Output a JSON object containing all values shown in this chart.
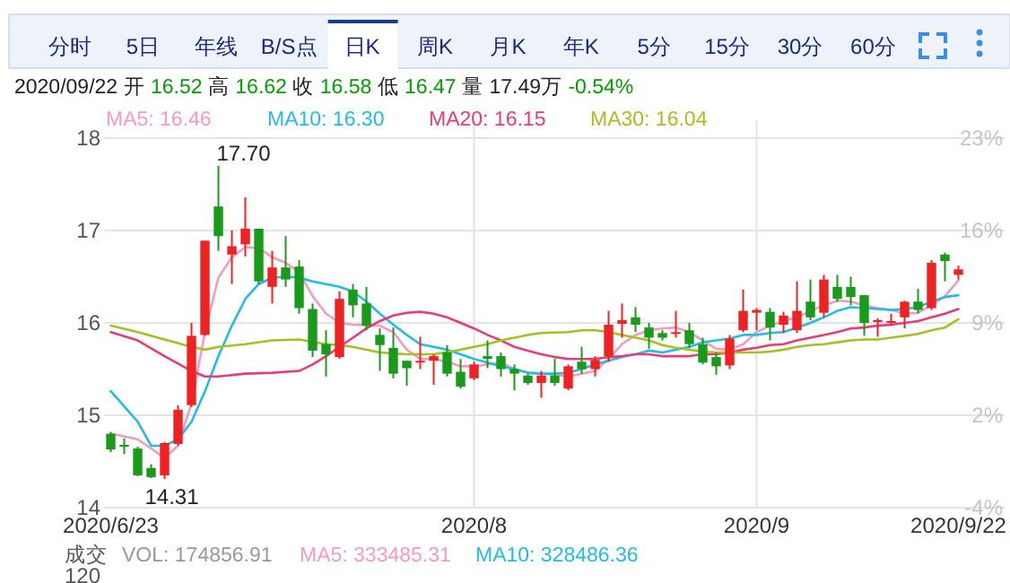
{
  "chart_data": {
    "type": "candlestick",
    "categories": [
      "2020/6/23",
      null,
      null,
      null,
      null,
      null,
      null,
      null,
      null,
      null,
      null,
      null,
      null,
      null,
      null,
      null,
      null,
      null,
      null,
      null,
      null,
      null,
      null,
      null,
      null,
      null,
      null,
      "2020/8",
      null,
      null,
      null,
      null,
      null,
      null,
      null,
      null,
      null,
      null,
      null,
      null,
      null,
      null,
      null,
      null,
      null,
      null,
      null,
      null,
      "2020/9",
      null,
      null,
      null,
      null,
      null,
      null,
      null,
      null,
      null,
      null,
      null,
      null,
      null,
      null,
      "2020/9/22"
    ],
    "ohlc": [
      [
        14.8,
        14.82,
        14.6,
        14.63
      ],
      [
        14.68,
        14.75,
        14.58,
        14.66
      ],
      [
        14.64,
        14.66,
        14.34,
        14.35
      ],
      [
        14.43,
        14.47,
        14.32,
        14.33
      ],
      [
        14.35,
        14.71,
        14.31,
        14.7
      ],
      [
        14.69,
        15.11,
        14.67,
        15.06
      ],
      [
        15.11,
        16.0,
        15.09,
        15.86
      ],
      [
        15.87,
        16.89,
        15.86,
        16.89
      ],
      [
        17.26,
        17.7,
        16.78,
        16.94
      ],
      [
        16.74,
        17.0,
        16.42,
        16.83
      ],
      [
        16.85,
        17.36,
        16.72,
        17.02
      ],
      [
        17.02,
        17.02,
        16.42,
        16.45
      ],
      [
        16.39,
        16.78,
        16.21,
        16.6
      ],
      [
        16.6,
        16.94,
        16.39,
        16.47
      ],
      [
        16.61,
        16.68,
        16.1,
        16.16
      ],
      [
        16.15,
        16.21,
        15.63,
        15.7
      ],
      [
        15.77,
        15.92,
        15.42,
        15.66
      ],
      [
        15.63,
        16.34,
        15.61,
        16.26
      ],
      [
        16.36,
        16.42,
        16.06,
        16.19
      ],
      [
        16.21,
        16.39,
        15.92,
        15.97
      ],
      [
        15.87,
        15.94,
        15.48,
        15.76
      ],
      [
        15.73,
        15.95,
        15.4,
        15.45
      ],
      [
        15.59,
        15.59,
        15.32,
        15.51
      ],
      [
        15.57,
        15.85,
        15.5,
        15.59
      ],
      [
        15.59,
        15.66,
        15.33,
        15.64
      ],
      [
        15.68,
        15.76,
        15.42,
        15.45
      ],
      [
        15.47,
        15.61,
        15.29,
        15.31
      ],
      [
        15.4,
        15.58,
        15.38,
        15.55
      ],
      [
        15.64,
        15.81,
        15.51,
        15.61
      ],
      [
        15.64,
        15.68,
        15.42,
        15.5
      ],
      [
        15.5,
        15.55,
        15.27,
        15.45
      ],
      [
        15.43,
        15.45,
        15.33,
        15.35
      ],
      [
        15.35,
        15.48,
        15.19,
        15.43
      ],
      [
        15.43,
        15.61,
        15.32,
        15.35
      ],
      [
        15.29,
        15.55,
        15.27,
        15.53
      ],
      [
        15.58,
        15.74,
        15.45,
        15.5
      ],
      [
        15.5,
        15.64,
        15.42,
        15.6
      ],
      [
        15.64,
        16.13,
        15.58,
        15.98
      ],
      [
        15.99,
        16.21,
        15.84,
        16.03
      ],
      [
        16.06,
        16.17,
        15.9,
        15.98
      ],
      [
        15.95,
        16.0,
        15.72,
        15.84
      ],
      [
        15.89,
        15.92,
        15.81,
        15.84
      ],
      [
        15.88,
        16.13,
        15.84,
        15.9
      ],
      [
        15.92,
        16.0,
        15.73,
        15.77
      ],
      [
        15.77,
        15.84,
        15.55,
        15.57
      ],
      [
        15.63,
        15.68,
        15.44,
        15.53
      ],
      [
        15.54,
        15.87,
        15.5,
        15.83
      ],
      [
        15.92,
        16.36,
        15.9,
        16.13
      ],
      [
        16.11,
        16.16,
        15.92,
        16.14
      ],
      [
        16.12,
        16.16,
        15.81,
        15.95
      ],
      [
        15.98,
        16.12,
        15.89,
        16.08
      ],
      [
        15.92,
        16.45,
        15.89,
        16.13
      ],
      [
        16.23,
        16.47,
        16.03,
        16.06
      ],
      [
        16.11,
        16.52,
        16.06,
        16.47
      ],
      [
        16.39,
        16.52,
        16.23,
        16.26
      ],
      [
        16.39,
        16.5,
        16.19,
        16.28
      ],
      [
        16.3,
        16.3,
        15.86,
        16.0
      ],
      [
        16.01,
        16.05,
        15.85,
        16.03
      ],
      [
        16.01,
        16.1,
        15.97,
        16.02
      ],
      [
        16.06,
        16.24,
        15.94,
        16.23
      ],
      [
        16.23,
        16.37,
        16.1,
        16.14
      ],
      [
        16.16,
        16.68,
        16.14,
        16.65
      ],
      [
        16.74,
        16.76,
        16.45,
        16.67
      ],
      [
        16.52,
        16.62,
        16.47,
        16.58
      ]
    ],
    "colors": [
      "#1a9a1a",
      "#1a9a1a",
      "#1a9a1a",
      "#1a9a1a",
      "#ee2222",
      "#ee2222",
      "#ee2222",
      "#ee2222",
      "#1a9a1a",
      "#ee2222",
      "#ee2222",
      "#1a9a1a",
      "#ee2222",
      "#1a9a1a",
      "#1a9a1a",
      "#1a9a1a",
      "#1a9a1a",
      "#ee2222",
      "#1a9a1a",
      "#1a9a1a",
      "#1a9a1a",
      "#1a9a1a",
      "#1a9a1a",
      "#ee2222",
      "#ee2222",
      "#1a9a1a",
      "#1a9a1a",
      "#ee2222",
      "#1a9a1a",
      "#1a9a1a",
      "#1a9a1a",
      "#1a9a1a",
      "#ee2222",
      "#1a9a1a",
      "#ee2222",
      "#1a9a1a",
      "#ee2222",
      "#ee2222",
      "#ee2222",
      "#1a9a1a",
      "#1a9a1a",
      "#1a9a1a",
      "#ee2222",
      "#1a9a1a",
      "#1a9a1a",
      "#1a9a1a",
      "#ee2222",
      "#ee2222",
      "#ee2222",
      "#1a9a1a",
      "#ee2222",
      "#ee2222",
      "#1a9a1a",
      "#ee2222",
      "#1a9a1a",
      "#1a9a1a",
      "#1a9a1a",
      "#ee2222",
      "#ee2222",
      "#ee2222",
      "#1a9a1a",
      "#ee2222",
      "#1a9a1a",
      "#ee2222"
    ],
    "series": [
      {
        "name": "MA5: 16.46",
        "type": "line",
        "color": "#f59ac0",
        "values": [
          14.8,
          null,
          14.74,
          null,
          14.54,
          14.67,
          15.13,
          15.9,
          16.49,
          16.71,
          16.82,
          16.81,
          16.71,
          16.65,
          16.55,
          16.29,
          16.1,
          16.0,
          15.98,
          null,
          15.97,
          15.9,
          15.71,
          15.61,
          15.61,
          15.58,
          15.53,
          15.53,
          15.55,
          15.57,
          15.5,
          15.46,
          15.45,
          15.44,
          15.42,
          15.45,
          15.48,
          15.61,
          15.77,
          15.87,
          15.92,
          15.94,
          15.95,
          15.9,
          15.81,
          15.72,
          15.71,
          15.77,
          15.9,
          15.97,
          16.02,
          16.06,
          16.13,
          16.19,
          16.24,
          16.23,
          16.19,
          16.16,
          16.14,
          16.1,
          16.11,
          16.19,
          16.29,
          16.46
        ]
      },
      {
        "name": "MA10: 16.30",
        "type": "line",
        "color": "#22bde6",
        "values": [
          15.26,
          null,
          14.93,
          14.67,
          14.67,
          14.74,
          14.93,
          15.26,
          15.64,
          15.97,
          16.26,
          16.42,
          16.49,
          16.5,
          16.49,
          16.45,
          16.42,
          16.39,
          16.34,
          16.23,
          16.1,
          15.98,
          15.87,
          15.77,
          15.74,
          15.71,
          15.66,
          15.61,
          15.57,
          15.53,
          15.5,
          15.46,
          15.45,
          15.45,
          15.46,
          15.5,
          15.55,
          15.59,
          15.63,
          15.66,
          15.7,
          15.68,
          15.71,
          15.74,
          15.79,
          15.81,
          15.83,
          15.87,
          15.87,
          15.89,
          15.9,
          15.95,
          16.0,
          16.06,
          16.13,
          16.17,
          16.16,
          16.15,
          16.14,
          16.15,
          16.17,
          16.23,
          16.28,
          16.3
        ]
      },
      {
        "name": "MA20: 16.15",
        "type": "line",
        "color": "#ea3a78",
        "values": [
          15.9,
          null,
          15.81,
          null,
          15.64,
          null,
          15.48,
          15.42,
          15.42,
          null,
          15.45,
          null,
          15.46,
          null,
          15.48,
          15.55,
          15.64,
          15.74,
          15.84,
          15.94,
          16.02,
          16.08,
          16.11,
          16.12,
          16.1,
          16.06,
          16.0,
          15.94,
          15.87,
          15.81,
          15.74,
          15.7,
          15.66,
          15.63,
          15.61,
          15.61,
          15.61,
          15.63,
          15.64,
          15.66,
          15.66,
          15.64,
          15.64,
          15.64,
          15.66,
          15.66,
          15.68,
          15.71,
          15.73,
          15.76,
          15.77,
          15.81,
          15.84,
          15.87,
          15.9,
          15.94,
          15.95,
          15.97,
          15.98,
          16.0,
          16.02,
          16.06,
          16.1,
          16.15
        ]
      },
      {
        "name": "MA30: 16.04",
        "type": "line",
        "color": "#a5c021",
        "values": [
          15.97,
          null,
          15.9,
          null,
          15.82,
          null,
          15.74,
          15.71,
          15.74,
          null,
          15.77,
          null,
          15.81,
          null,
          15.82,
          null,
          15.77,
          15.76,
          15.74,
          null,
          15.68,
          null,
          15.66,
          null,
          15.66,
          null,
          15.71,
          15.74,
          15.77,
          15.81,
          15.84,
          15.87,
          15.89,
          null,
          15.9,
          15.92,
          15.92,
          15.9,
          15.87,
          15.84,
          15.81,
          15.76,
          15.73,
          15.71,
          15.69,
          15.68,
          15.68,
          15.68,
          15.68,
          15.69,
          15.71,
          15.74,
          15.76,
          15.77,
          15.79,
          15.81,
          15.82,
          15.82,
          15.84,
          15.86,
          15.88,
          15.92,
          15.95,
          16.04
        ]
      }
    ],
    "ylim": [
      14,
      18
    ],
    "yticks": [
      14,
      15,
      16,
      17,
      18
    ],
    "y2lim": [
      -4.44,
      22.87
    ],
    "y2ticks": [
      {
        "value": -4.44,
        "label": "-4%"
      },
      {
        "value": 2.39,
        "label": "2%"
      },
      {
        "value": 9.22,
        "label": "9%"
      },
      {
        "value": 16.04,
        "label": "16%"
      },
      {
        "value": 22.87,
        "label": "23%"
      }
    ],
    "grid": true,
    "legend": "top",
    "annotations": [
      "分时",
      "5日",
      "年线",
      "B/S点",
      "日K",
      "周K",
      "月K",
      "年K",
      "5分",
      "15分",
      "30分",
      "60分",
      "2020/09/22",
      "开",
      "16.52",
      "高",
      "16.62",
      "收",
      "16.58",
      "低",
      "16.47",
      "量",
      "17.49万",
      "-0.54%",
      "成交",
      "VOL: 174856.91",
      "MA5: 333485.31",
      "MA10: 328486.36",
      "120",
      "17.70",
      "14.31"
    ]
  }
}
